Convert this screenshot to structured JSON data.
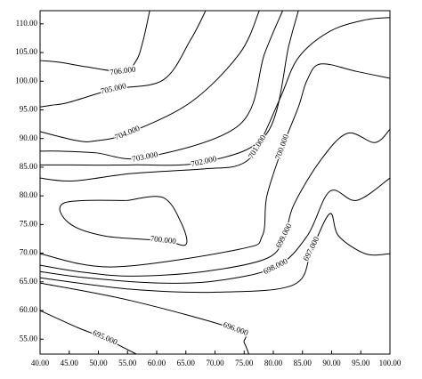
{
  "chart_data": {
    "type": "contour",
    "xlim": [
      40,
      100
    ],
    "ylim": [
      52.4,
      112.3
    ],
    "xticks": [
      {
        "value": 40,
        "label": "40.00"
      },
      {
        "value": 45,
        "label": "45.00"
      },
      {
        "value": 50,
        "label": "50.00"
      },
      {
        "value": 55,
        "label": "55.00"
      },
      {
        "value": 60,
        "label": "60.00"
      },
      {
        "value": 65,
        "label": "65.00"
      },
      {
        "value": 70,
        "label": "70.00"
      },
      {
        "value": 75,
        "label": "75.00"
      },
      {
        "value": 80,
        "label": "80.00"
      },
      {
        "value": 85,
        "label": "85.00"
      },
      {
        "value": 90,
        "label": "90.00"
      },
      {
        "value": 95,
        "label": "95.00"
      },
      {
        "value": 100,
        "label": "100.00"
      }
    ],
    "yticks": [
      {
        "value": 55,
        "label": "55.00"
      },
      {
        "value": 60,
        "label": "60.00"
      },
      {
        "value": 65,
        "label": "65.00"
      },
      {
        "value": 70,
        "label": "70.00"
      },
      {
        "value": 75,
        "label": "75.00"
      },
      {
        "value": 80,
        "label": "80.00"
      },
      {
        "value": 85,
        "label": "85.00"
      },
      {
        "value": 90,
        "label": "90.00"
      },
      {
        "value": 95,
        "label": "95.00"
      },
      {
        "value": 100,
        "label": "100.00"
      },
      {
        "value": 105,
        "label": "105.00"
      },
      {
        "value": 110,
        "label": "110.00"
      }
    ],
    "color": "#000000",
    "contours": [
      {
        "level": 706,
        "label": "706.000",
        "x": [
          58.8,
          57.7,
          56.5,
          54.2,
          48.0,
          43.4,
          40
        ],
        "y": [
          112.3,
          107.2,
          103.6,
          101.7,
          102.5,
          103.3,
          103.6
        ]
      },
      {
        "level": 705,
        "label": "705.000",
        "x": [
          68.4,
          65.8,
          61.1,
          52.6,
          44.9,
          41.9,
          40
        ],
        "y": [
          112.3,
          107.2,
          100.2,
          98.6,
          96.3,
          95.8,
          95.5
        ]
      },
      {
        "level": 704,
        "label": "704.000",
        "x": [
          77.6,
          74.2,
          65.8,
          55.0,
          49.6,
          46.5,
          40
        ],
        "y": [
          112.3,
          104.8,
          96.3,
          90.9,
          89.6,
          89.6,
          91.2
        ]
      },
      {
        "level": 703,
        "label": "703.000",
        "x": [
          81.6,
          78.5,
          74.2,
          58.0,
          49.6,
          43.4,
          40
        ],
        "y": [
          112.3,
          104.8,
          92.4,
          86.7,
          87.5,
          87.8,
          87.8
        ]
      },
      {
        "level": 702,
        "label": "702.000",
        "x": [
          84.3,
          82.7,
          78.9,
          68.1,
          55.7,
          44.9,
          40
        ],
        "y": [
          112.3,
          106.4,
          90.9,
          85.9,
          85.4,
          85.4,
          85.4
        ]
      },
      {
        "level": 701,
        "label": "701.000",
        "x": [
          40,
          45.7,
          55.7,
          68.1,
          74.2,
          77.3,
          81.2,
          84.3,
          89.7,
          95.8,
          100
        ],
        "y": [
          83.1,
          82.6,
          83.9,
          84.7,
          85.4,
          88.5,
          97.1,
          104.1,
          108.7,
          110.7,
          111.1
        ]
      },
      {
        "level": 700,
        "label": "700.000",
        "x": [
          100,
          94.3,
          88.1,
          85.8,
          84.3,
          81.6,
          78.9,
          78.1,
          74.2,
          52.6,
          40
        ],
        "y": [
          100.5,
          101.7,
          103.0,
          100.2,
          95.5,
          88.5,
          80.0,
          73.0,
          70.7,
          67.6,
          69.9
        ]
      },
      {
        "level": 700,
        "label": "700.000",
        "x": [
          55.0,
          61.1,
          64.2,
          65.0,
          61.1,
          51.1,
          44.9,
          44.2,
          55.0
        ],
        "y": [
          79.2,
          79.7,
          75.3,
          71.5,
          72.2,
          73.0,
          75.3,
          78.8,
          79.2
        ]
      },
      {
        "level": 699,
        "label": "699.000",
        "x": [
          100,
          97.4,
          92.7,
          88.1,
          83.5,
          81.9,
          78.9,
          68.1,
          55.7,
          46.5,
          40
        ],
        "y": [
          91.6,
          89.3,
          90.9,
          86.2,
          78.4,
          73.0,
          69.1,
          66.8,
          66.0,
          66.8,
          67.9
        ]
      },
      {
        "level": 698,
        "label": "698.000",
        "x": [
          100,
          94.3,
          89.7,
          85.8,
          80.4,
          70.4,
          60.4,
          48.0,
          40
        ],
        "y": [
          83.1,
          79.2,
          80.8,
          73.0,
          67.6,
          65.2,
          64.8,
          65.7,
          66.8
        ]
      },
      {
        "level": 697,
        "label": "697.000",
        "x": [
          100,
          95.8,
          91.2,
          89.7,
          86.6,
          83.5,
          70.4,
          55.7,
          40
        ],
        "y": [
          69.9,
          69.9,
          73.0,
          76.9,
          70.7,
          64.5,
          63.2,
          63.7,
          65.7
        ]
      },
      {
        "level": 696,
        "label": "696.000",
        "x": [
          40,
          55.7,
          73.5,
          75.0,
          75.8
        ],
        "y": [
          64.8,
          61.7,
          56.7,
          54.4,
          52.4
        ]
      },
      {
        "level": 695,
        "label": "695.000",
        "x": [
          40,
          46.5,
          51.1,
          54.2,
          56.5
        ],
        "y": [
          60.0,
          57.0,
          55.2,
          53.6,
          52.4
        ]
      }
    ]
  }
}
